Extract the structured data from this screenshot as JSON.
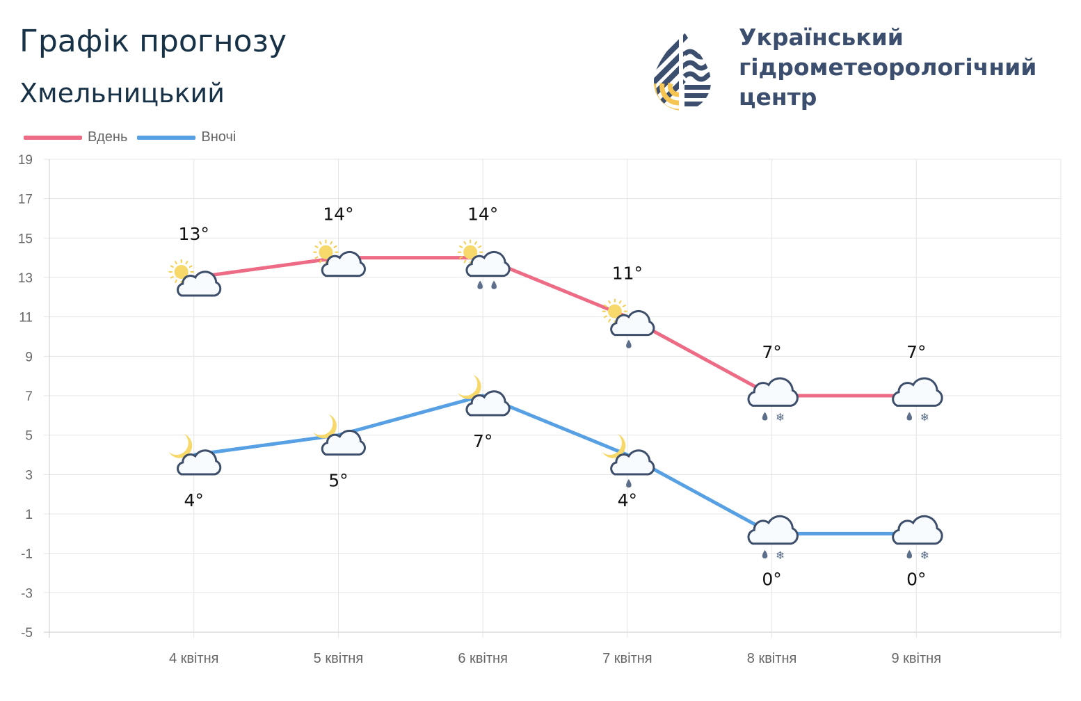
{
  "header": {
    "title": "Графік прогнозу",
    "city": "Хмельницький"
  },
  "organization": {
    "line1": "Український",
    "line2": "гідрометеорологічний",
    "line3": "центр"
  },
  "colors": {
    "day": "#ee6b85",
    "night": "#56a0e3",
    "logo_blue": "#3b4e6e",
    "logo_yellow": "#f5c451"
  },
  "chart_data": {
    "type": "line",
    "categories": [
      "4 квітня",
      "5 квітня",
      "6 квітня",
      "7 квітня",
      "8 квітня",
      "9 квітня"
    ],
    "ylim": [
      -5,
      19
    ],
    "yticks": [
      19,
      17,
      15,
      13,
      11,
      9,
      7,
      5,
      3,
      1,
      -1,
      -3,
      -5
    ],
    "grid": true,
    "legend": "top-left",
    "series": [
      {
        "name": "Вдень",
        "values": [
          13,
          14,
          14,
          11,
          7,
          7
        ],
        "labels": [
          "13°",
          "14°",
          "14°",
          "11°",
          "7°",
          "7°"
        ],
        "icons": [
          "sun-cloud",
          "sun-cloud",
          "sun-cloud-rain",
          "sun-cloud-light-rain",
          "cloud-sleet",
          "cloud-sleet"
        ]
      },
      {
        "name": "Вночі",
        "values": [
          4,
          5,
          7,
          4,
          0,
          0
        ],
        "labels": [
          "4°",
          "5°",
          "7°",
          "4°",
          "0°",
          "0°"
        ],
        "icons": [
          "moon-cloud",
          "moon-cloud",
          "moon-cloud",
          "moon-cloud-light-rain",
          "cloud-sleet",
          "cloud-sleet"
        ]
      }
    ]
  }
}
